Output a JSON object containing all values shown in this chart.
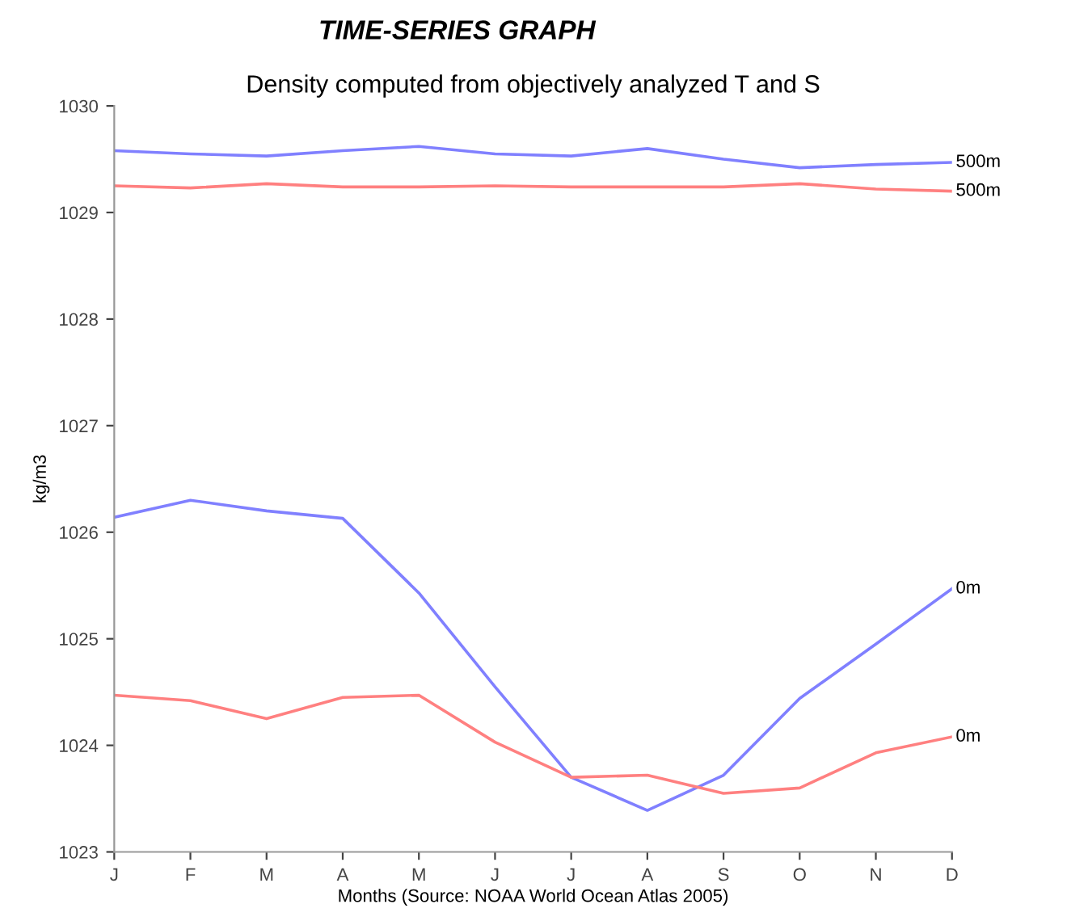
{
  "chart_data": {
    "type": "line",
    "title": "TIME-SERIES GRAPH",
    "subtitle": "Density computed from objectively analyzed T and S",
    "xlabel": "Months (Source: NOAA World Ocean Atlas 2005)",
    "ylabel": "kg/m3",
    "categories": [
      "J",
      "F",
      "M",
      "A",
      "M",
      "J",
      "J",
      "A",
      "S",
      "O",
      "N",
      "D"
    ],
    "ylim": [
      1023,
      1030
    ],
    "yticks": [
      1023,
      1024,
      1025,
      1026,
      1027,
      1028,
      1029,
      1030
    ],
    "grid": false,
    "legend": false,
    "marker": "none",
    "line_style": "solid",
    "series": [
      {
        "name": "500m",
        "color": "#8080ff",
        "values": [
          1029.58,
          1029.55,
          1029.53,
          1029.58,
          1029.62,
          1029.55,
          1029.53,
          1029.6,
          1029.5,
          1029.42,
          1029.45,
          1029.47
        ]
      },
      {
        "name": "500m",
        "color": "#ff8080",
        "values": [
          1029.25,
          1029.23,
          1029.27,
          1029.24,
          1029.24,
          1029.25,
          1029.24,
          1029.24,
          1029.24,
          1029.27,
          1029.22,
          1029.2
        ]
      },
      {
        "name": "0m",
        "color": "#8080ff",
        "values": [
          1026.14,
          1026.3,
          1026.2,
          1026.13,
          1025.43,
          1024.55,
          1023.7,
          1023.39,
          1023.72,
          1024.44,
          1024.95,
          1025.47
        ]
      },
      {
        "name": "0m",
        "color": "#ff8080",
        "values": [
          1024.47,
          1024.42,
          1024.25,
          1024.45,
          1024.47,
          1024.03,
          1023.7,
          1023.72,
          1023.55,
          1023.6,
          1023.93,
          1024.08
        ]
      }
    ]
  }
}
